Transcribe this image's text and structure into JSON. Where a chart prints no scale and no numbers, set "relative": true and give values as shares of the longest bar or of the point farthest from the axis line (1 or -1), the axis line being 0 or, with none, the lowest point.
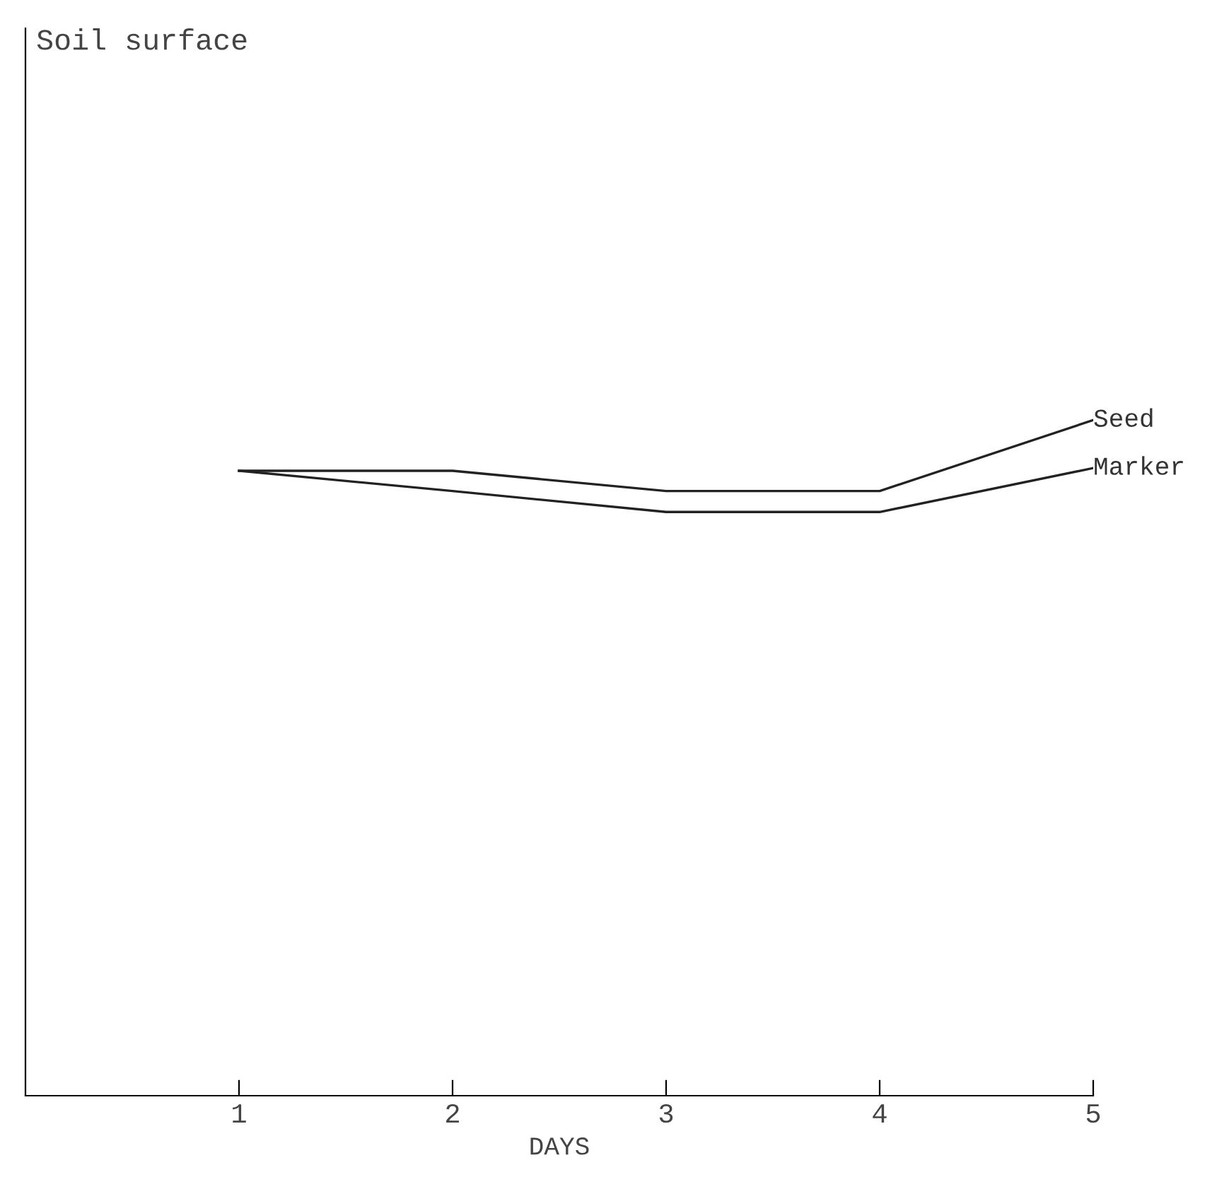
{
  "chart_data": {
    "type": "line",
    "relative": true,
    "annotations": [
      "Soil surface"
    ],
    "xlabel": "DAYS",
    "x": [
      1,
      2,
      3,
      4,
      5
    ],
    "xlim": [
      0,
      5
    ],
    "xticks": [
      1,
      2,
      3,
      4,
      5
    ],
    "grid": false,
    "legend": false,
    "marker": "none",
    "line_style": "solid",
    "series": [
      {
        "name": "Seed",
        "color": "#222222",
        "values": [
          0.925,
          0.925,
          0.895,
          0.895,
          1
        ]
      },
      {
        "name": "Marker",
        "color": "#222222",
        "values": [
          0.925,
          0.895,
          0.864,
          0.864,
          0.929
        ]
      }
    ]
  }
}
